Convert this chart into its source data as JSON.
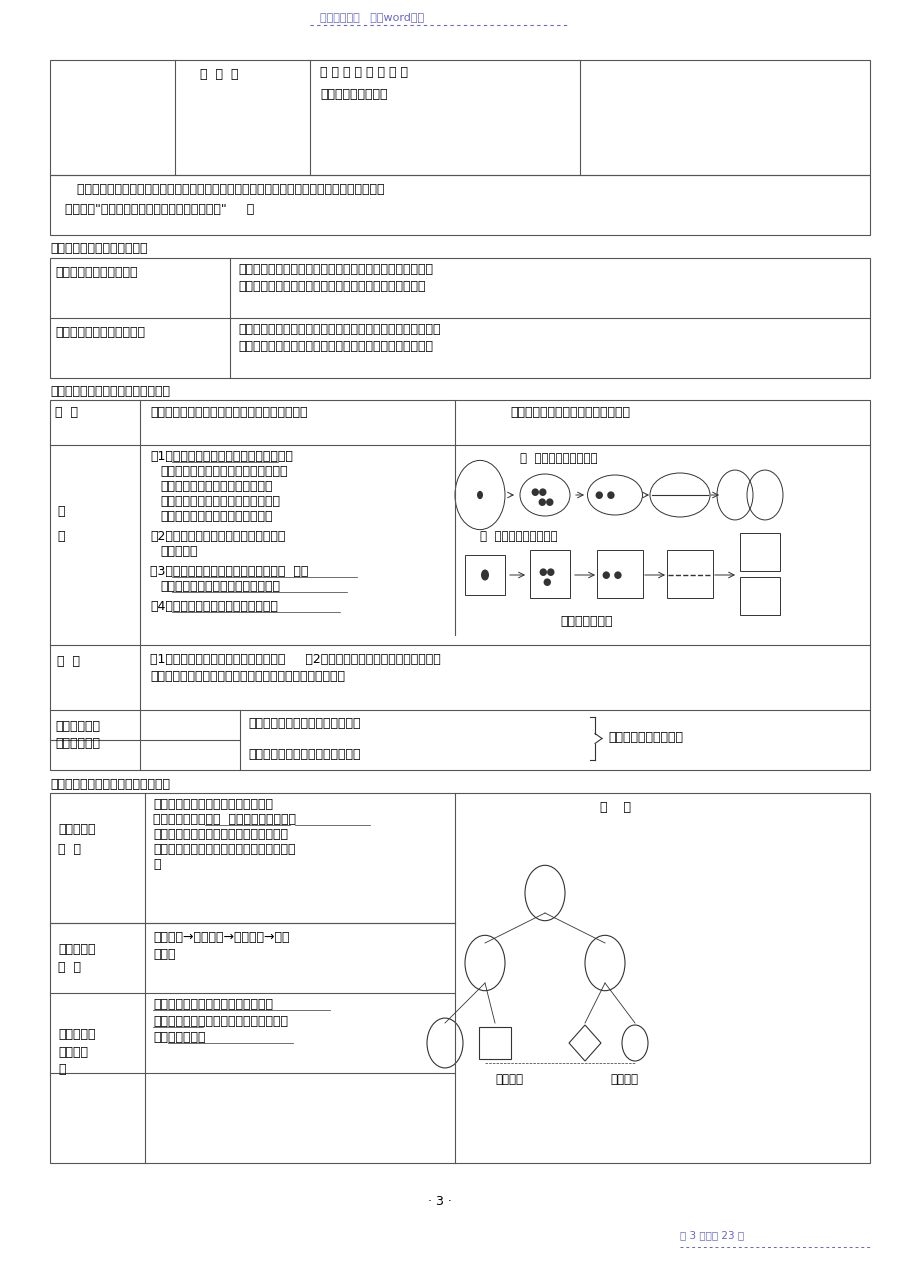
{
  "header_text": "名师归纳总结   精品word资料",
  "footer_text": "第 3 页，共 23 页",
  "page_number": "· 3 ·",
  "header_color": "#6666cc",
  "footer_color": "#6666cc",
  "bg_color": "#ffffff",
  "text_color": "#000000",
  "table_border_color": "#333333",
  "dotted_line_color": "#6666cc"
}
